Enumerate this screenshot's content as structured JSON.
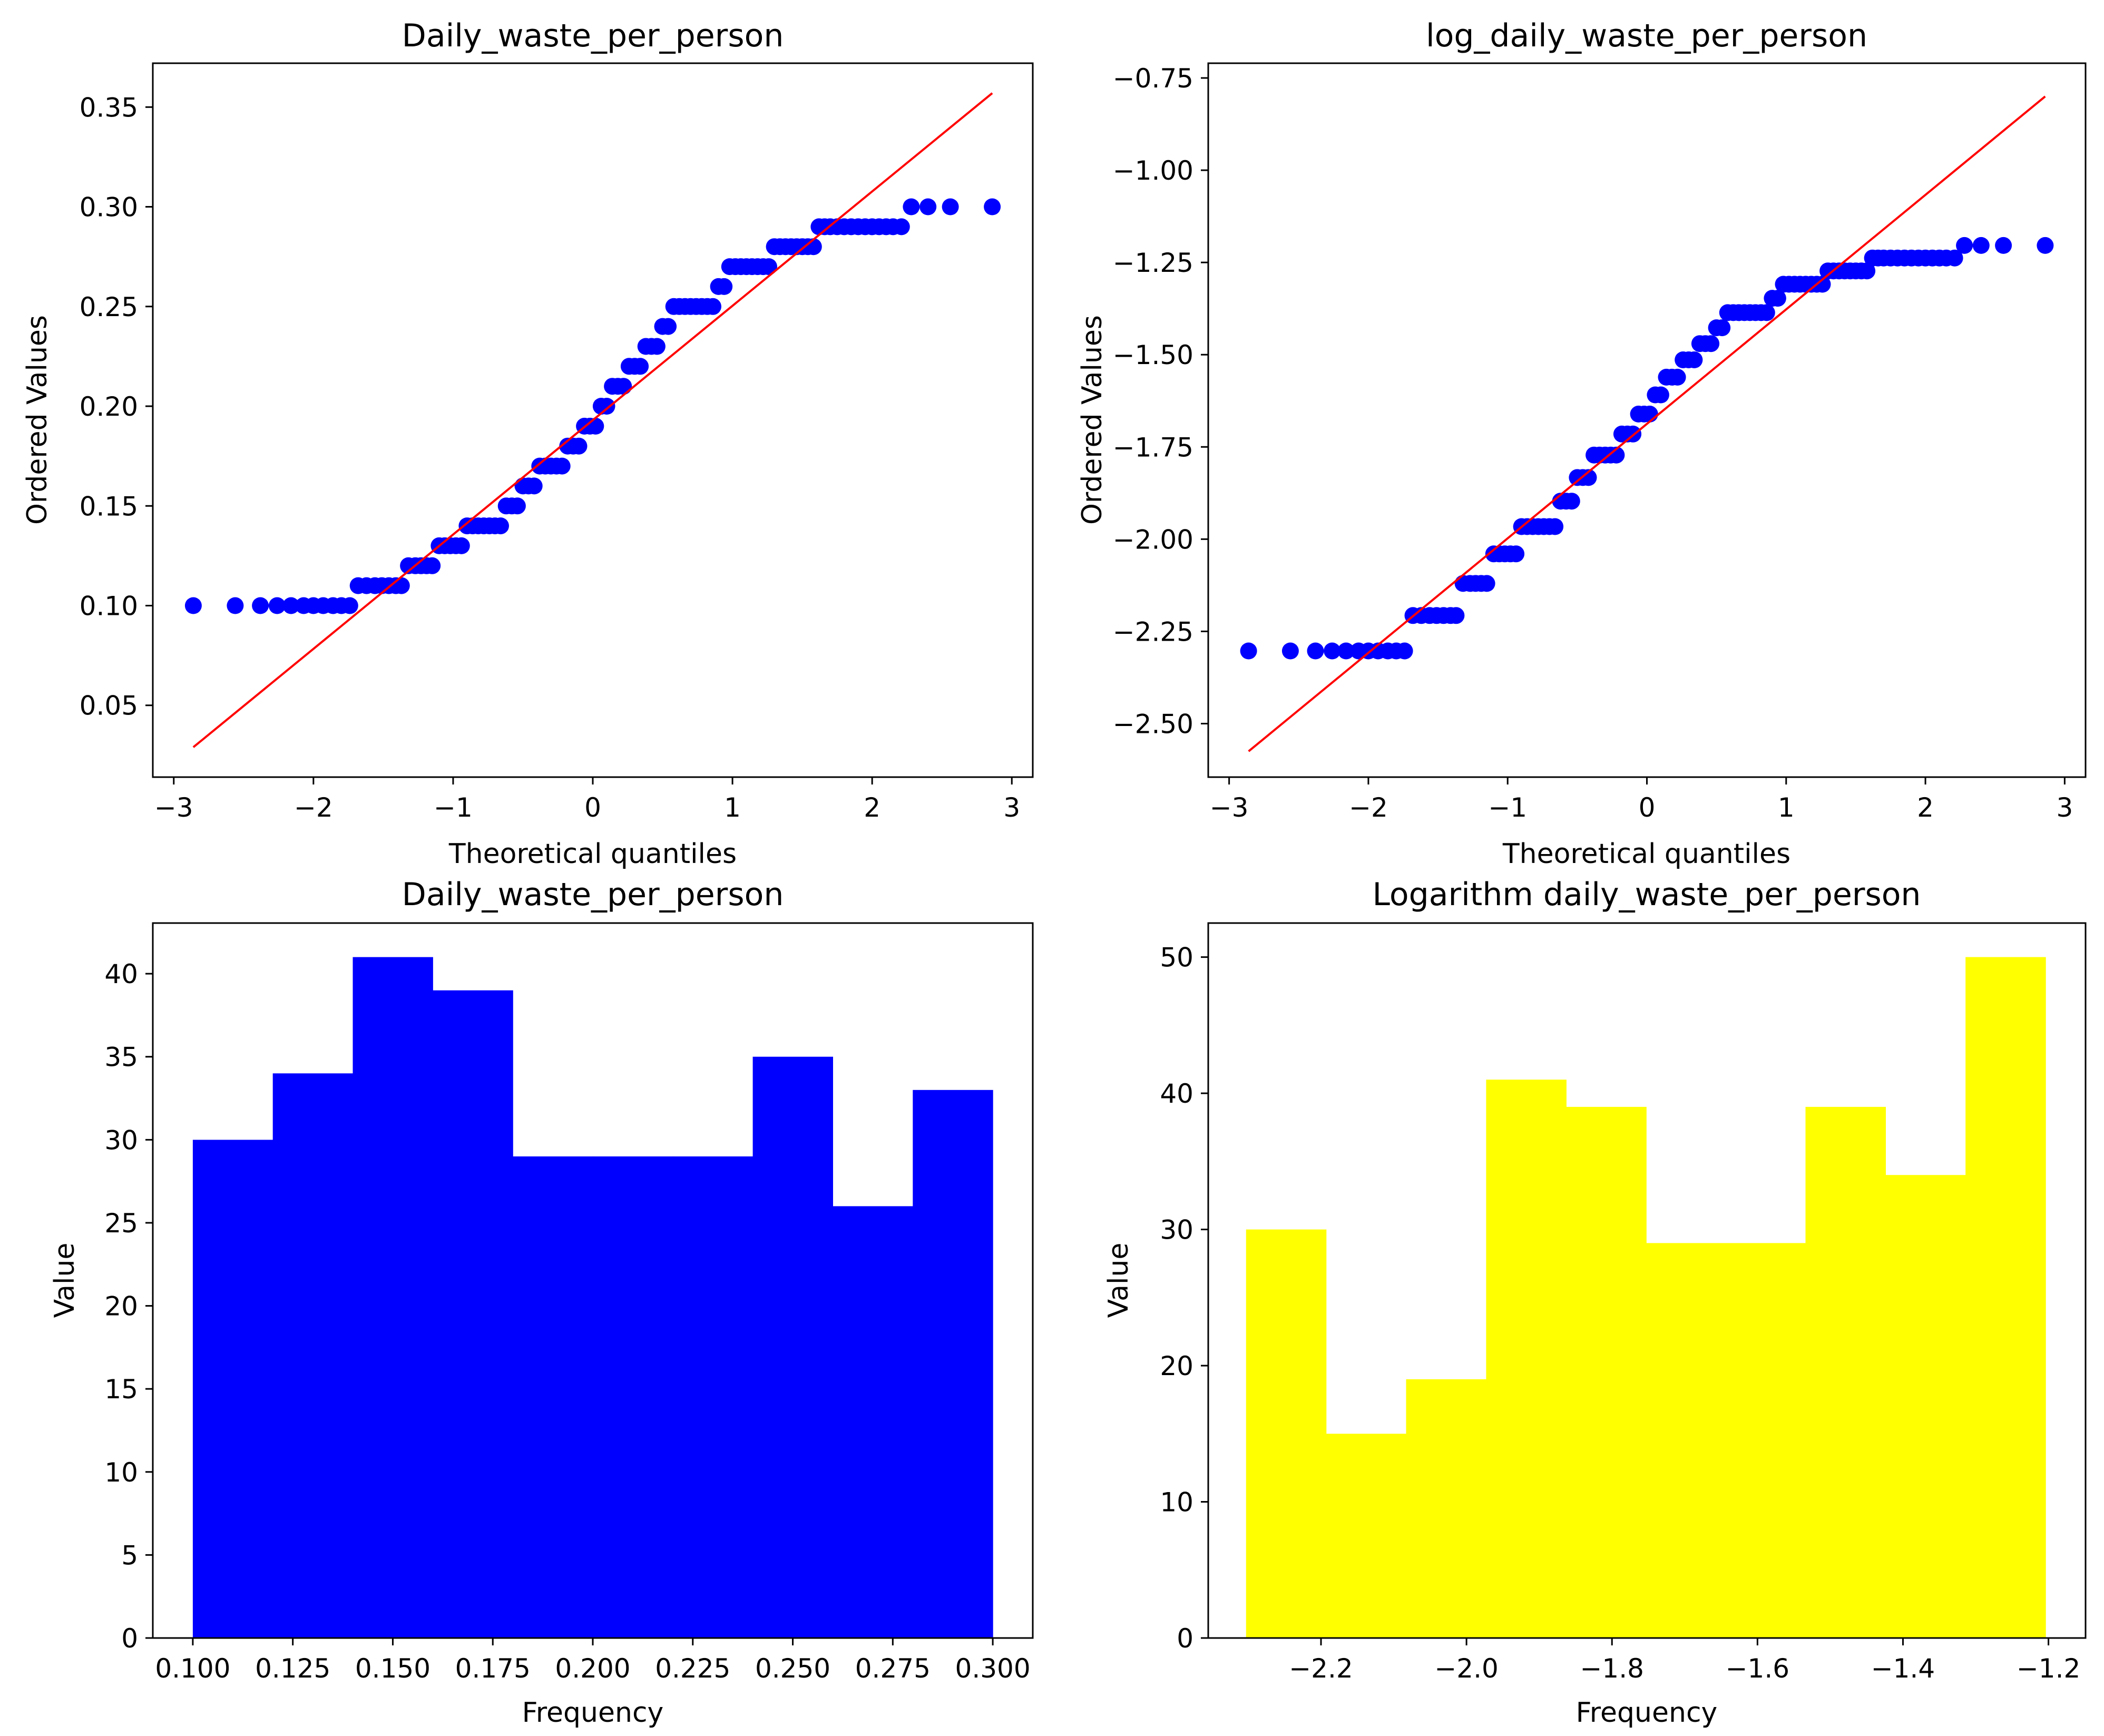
{
  "chart_data": [
    {
      "type": "scatter",
      "subtype": "probability-plot",
      "title": "Daily_waste_per_person",
      "xlabel": "Theoretical quantiles",
      "ylabel": "Ordered Values",
      "xlim": [
        -3.15,
        3.15
      ],
      "ylim": [
        0.014,
        0.372
      ],
      "xticks": [
        -3,
        -2,
        -1,
        0,
        1,
        2,
        3
      ],
      "xtick_labels": [
        "−3",
        "−2",
        "−1",
        "0",
        "1",
        "2",
        "3"
      ],
      "yticks": [
        0.05,
        0.1,
        0.15,
        0.2,
        0.25,
        0.3,
        0.35
      ],
      "ytick_labels": [
        "0.05",
        "0.10",
        "0.15",
        "0.20",
        "0.25",
        "0.30",
        "0.35"
      ],
      "fit_line": {
        "x": [
          -2.86,
          2.86
        ],
        "y": [
          0.029,
          0.357
        ],
        "color": "#ff0000"
      },
      "point_color": "#0000ff",
      "points": [
        [
          -2.86,
          0.1
        ],
        [
          -2.56,
          0.1
        ],
        [
          -2.38,
          0.1
        ],
        [
          -2.26,
          0.1
        ],
        [
          -2.16,
          0.1
        ],
        [
          -2.07,
          0.1
        ],
        [
          -2.0,
          0.1
        ],
        [
          -1.93,
          0.1
        ],
        [
          -1.86,
          0.1
        ],
        [
          -1.8,
          0.1
        ],
        [
          -1.74,
          0.1
        ],
        [
          -1.68,
          0.11
        ],
        [
          -1.62,
          0.11
        ],
        [
          -1.56,
          0.11
        ],
        [
          -1.51,
          0.11
        ],
        [
          -1.46,
          0.11
        ],
        [
          -1.41,
          0.11
        ],
        [
          -1.37,
          0.11
        ],
        [
          -1.32,
          0.12
        ],
        [
          -1.27,
          0.12
        ],
        [
          -1.23,
          0.12
        ],
        [
          -1.19,
          0.12
        ],
        [
          -1.15,
          0.12
        ],
        [
          -1.1,
          0.13
        ],
        [
          -1.06,
          0.13
        ],
        [
          -1.02,
          0.13
        ],
        [
          -0.98,
          0.13
        ],
        [
          -0.94,
          0.13
        ],
        [
          -0.9,
          0.14
        ],
        [
          -0.86,
          0.14
        ],
        [
          -0.82,
          0.14
        ],
        [
          -0.78,
          0.14
        ],
        [
          -0.74,
          0.14
        ],
        [
          -0.7,
          0.14
        ],
        [
          -0.66,
          0.14
        ],
        [
          -0.62,
          0.15
        ],
        [
          -0.58,
          0.15
        ],
        [
          -0.54,
          0.15
        ],
        [
          -0.5,
          0.16
        ],
        [
          -0.46,
          0.16
        ],
        [
          -0.42,
          0.16
        ],
        [
          -0.38,
          0.17
        ],
        [
          -0.34,
          0.17
        ],
        [
          -0.3,
          0.17
        ],
        [
          -0.26,
          0.17
        ],
        [
          -0.22,
          0.17
        ],
        [
          -0.18,
          0.18
        ],
        [
          -0.14,
          0.18
        ],
        [
          -0.1,
          0.18
        ],
        [
          -0.06,
          0.19
        ],
        [
          -0.02,
          0.19
        ],
        [
          0.02,
          0.19
        ],
        [
          0.06,
          0.2
        ],
        [
          0.1,
          0.2
        ],
        [
          0.14,
          0.21
        ],
        [
          0.18,
          0.21
        ],
        [
          0.22,
          0.21
        ],
        [
          0.26,
          0.22
        ],
        [
          0.3,
          0.22
        ],
        [
          0.34,
          0.22
        ],
        [
          0.38,
          0.23
        ],
        [
          0.42,
          0.23
        ],
        [
          0.46,
          0.23
        ],
        [
          0.5,
          0.24
        ],
        [
          0.54,
          0.24
        ],
        [
          0.58,
          0.25
        ],
        [
          0.62,
          0.25
        ],
        [
          0.66,
          0.25
        ],
        [
          0.7,
          0.25
        ],
        [
          0.74,
          0.25
        ],
        [
          0.78,
          0.25
        ],
        [
          0.82,
          0.25
        ],
        [
          0.86,
          0.25
        ],
        [
          0.9,
          0.26
        ],
        [
          0.94,
          0.26
        ],
        [
          0.98,
          0.27
        ],
        [
          1.02,
          0.27
        ],
        [
          1.06,
          0.27
        ],
        [
          1.1,
          0.27
        ],
        [
          1.14,
          0.27
        ],
        [
          1.18,
          0.27
        ],
        [
          1.22,
          0.27
        ],
        [
          1.26,
          0.27
        ],
        [
          1.3,
          0.28
        ],
        [
          1.34,
          0.28
        ],
        [
          1.38,
          0.28
        ],
        [
          1.42,
          0.28
        ],
        [
          1.46,
          0.28
        ],
        [
          1.5,
          0.28
        ],
        [
          1.54,
          0.28
        ],
        [
          1.58,
          0.28
        ],
        [
          1.62,
          0.29
        ],
        [
          1.66,
          0.29
        ],
        [
          1.7,
          0.29
        ],
        [
          1.75,
          0.29
        ],
        [
          1.8,
          0.29
        ],
        [
          1.85,
          0.29
        ],
        [
          1.9,
          0.29
        ],
        [
          1.95,
          0.29
        ],
        [
          2.0,
          0.29
        ],
        [
          2.05,
          0.29
        ],
        [
          2.1,
          0.29
        ],
        [
          2.15,
          0.29
        ],
        [
          2.21,
          0.29
        ],
        [
          2.28,
          0.3
        ],
        [
          2.4,
          0.3
        ],
        [
          2.56,
          0.3
        ],
        [
          2.86,
          0.3
        ]
      ]
    },
    {
      "type": "scatter",
      "subtype": "probability-plot",
      "title": "log_daily_waste_per_person",
      "xlabel": "Theoretical quantiles",
      "ylabel": "Ordered Values",
      "xlim": [
        -3.15,
        3.15
      ],
      "ylim": [
        -2.645,
        -0.71
      ],
      "xticks": [
        -3,
        -2,
        -1,
        0,
        1,
        2,
        3
      ],
      "xtick_labels": [
        "−3",
        "−2",
        "−1",
        "0",
        "1",
        "2",
        "3"
      ],
      "yticks": [
        -2.5,
        -2.25,
        -2.0,
        -1.75,
        -1.5,
        -1.25,
        -1.0,
        -0.75
      ],
      "ytick_labels": [
        "−2.50",
        "−2.25",
        "−2.00",
        "−1.75",
        "−1.50",
        "−1.25",
        "−1.00",
        "−0.75"
      ],
      "fit_line": {
        "x": [
          -2.86,
          2.86
        ],
        "y": [
          -2.575,
          -0.8
        ],
        "color": "#ff0000"
      },
      "point_color": "#0000ff",
      "points": [
        [
          -2.86,
          -2.303
        ],
        [
          -2.56,
          -2.303
        ],
        [
          -2.38,
          -2.303
        ],
        [
          -2.26,
          -2.303
        ],
        [
          -2.16,
          -2.303
        ],
        [
          -2.07,
          -2.303
        ],
        [
          -2.0,
          -2.303
        ],
        [
          -1.93,
          -2.303
        ],
        [
          -1.86,
          -2.303
        ],
        [
          -1.8,
          -2.303
        ],
        [
          -1.74,
          -2.303
        ],
        [
          -1.68,
          -2.207
        ],
        [
          -1.62,
          -2.207
        ],
        [
          -1.56,
          -2.207
        ],
        [
          -1.51,
          -2.207
        ],
        [
          -1.46,
          -2.207
        ],
        [
          -1.41,
          -2.207
        ],
        [
          -1.37,
          -2.207
        ],
        [
          -1.32,
          -2.12
        ],
        [
          -1.27,
          -2.12
        ],
        [
          -1.23,
          -2.12
        ],
        [
          -1.19,
          -2.12
        ],
        [
          -1.15,
          -2.12
        ],
        [
          -1.1,
          -2.04
        ],
        [
          -1.06,
          -2.04
        ],
        [
          -1.02,
          -2.04
        ],
        [
          -0.98,
          -2.04
        ],
        [
          -0.94,
          -2.04
        ],
        [
          -0.9,
          -1.966
        ],
        [
          -0.86,
          -1.966
        ],
        [
          -0.82,
          -1.966
        ],
        [
          -0.78,
          -1.966
        ],
        [
          -0.74,
          -1.966
        ],
        [
          -0.7,
          -1.966
        ],
        [
          -0.66,
          -1.966
        ],
        [
          -0.62,
          -1.897
        ],
        [
          -0.58,
          -1.897
        ],
        [
          -0.54,
          -1.897
        ],
        [
          -0.5,
          -1.833
        ],
        [
          -0.46,
          -1.833
        ],
        [
          -0.42,
          -1.833
        ],
        [
          -0.38,
          -1.772
        ],
        [
          -0.34,
          -1.772
        ],
        [
          -0.3,
          -1.772
        ],
        [
          -0.26,
          -1.772
        ],
        [
          -0.22,
          -1.772
        ],
        [
          -0.18,
          -1.715
        ],
        [
          -0.14,
          -1.715
        ],
        [
          -0.1,
          -1.715
        ],
        [
          -0.06,
          -1.661
        ],
        [
          -0.02,
          -1.661
        ],
        [
          0.02,
          -1.661
        ],
        [
          0.06,
          -1.609
        ],
        [
          0.1,
          -1.609
        ],
        [
          0.14,
          -1.561
        ],
        [
          0.18,
          -1.561
        ],
        [
          0.22,
          -1.561
        ],
        [
          0.26,
          -1.514
        ],
        [
          0.3,
          -1.514
        ],
        [
          0.34,
          -1.514
        ],
        [
          0.38,
          -1.47
        ],
        [
          0.42,
          -1.47
        ],
        [
          0.46,
          -1.47
        ],
        [
          0.5,
          -1.427
        ],
        [
          0.54,
          -1.427
        ],
        [
          0.58,
          -1.386
        ],
        [
          0.62,
          -1.386
        ],
        [
          0.66,
          -1.386
        ],
        [
          0.7,
          -1.386
        ],
        [
          0.74,
          -1.386
        ],
        [
          0.78,
          -1.386
        ],
        [
          0.82,
          -1.386
        ],
        [
          0.86,
          -1.386
        ],
        [
          0.9,
          -1.347
        ],
        [
          0.94,
          -1.347
        ],
        [
          0.98,
          -1.309
        ],
        [
          1.02,
          -1.309
        ],
        [
          1.06,
          -1.309
        ],
        [
          1.1,
          -1.309
        ],
        [
          1.14,
          -1.309
        ],
        [
          1.18,
          -1.309
        ],
        [
          1.22,
          -1.309
        ],
        [
          1.26,
          -1.309
        ],
        [
          1.3,
          -1.273
        ],
        [
          1.34,
          -1.273
        ],
        [
          1.38,
          -1.273
        ],
        [
          1.42,
          -1.273
        ],
        [
          1.46,
          -1.273
        ],
        [
          1.5,
          -1.273
        ],
        [
          1.54,
          -1.273
        ],
        [
          1.58,
          -1.273
        ],
        [
          1.62,
          -1.238
        ],
        [
          1.66,
          -1.238
        ],
        [
          1.7,
          -1.238
        ],
        [
          1.75,
          -1.238
        ],
        [
          1.8,
          -1.238
        ],
        [
          1.85,
          -1.238
        ],
        [
          1.9,
          -1.238
        ],
        [
          1.95,
          -1.238
        ],
        [
          2.0,
          -1.238
        ],
        [
          2.05,
          -1.238
        ],
        [
          2.1,
          -1.238
        ],
        [
          2.15,
          -1.238
        ],
        [
          2.21,
          -1.238
        ],
        [
          2.28,
          -1.204
        ],
        [
          2.4,
          -1.204
        ],
        [
          2.56,
          -1.204
        ],
        [
          2.86,
          -1.204
        ]
      ]
    },
    {
      "type": "bar",
      "subtype": "histogram",
      "title": "Daily_waste_per_person",
      "xlabel": "Frequency",
      "ylabel": "Value",
      "xlim": [
        0.09,
        0.31
      ],
      "ylim": [
        0,
        43.05
      ],
      "bin_edges": [
        0.1,
        0.12,
        0.14,
        0.16,
        0.18,
        0.2,
        0.22,
        0.24,
        0.26,
        0.28,
        0.3
      ],
      "values": [
        30,
        34,
        41,
        39,
        29,
        29,
        29,
        35,
        26,
        33
      ],
      "color": "#0000ff",
      "xticks": [
        0.1,
        0.125,
        0.15,
        0.175,
        0.2,
        0.225,
        0.25,
        0.275,
        0.3
      ],
      "xtick_labels": [
        "0.100",
        "0.125",
        "0.150",
        "0.175",
        "0.200",
        "0.225",
        "0.250",
        "0.275",
        "0.300"
      ],
      "yticks": [
        0,
        5,
        10,
        15,
        20,
        25,
        30,
        35,
        40
      ],
      "ytick_labels": [
        "0",
        "5",
        "10",
        "15",
        "20",
        "25",
        "30",
        "35",
        "40"
      ]
    },
    {
      "type": "bar",
      "subtype": "histogram",
      "title": "Logarithm daily_waste_per_person",
      "xlabel": "Frequency",
      "ylabel": "Value",
      "xlim": [
        -2.355,
        -1.149
      ],
      "ylim": [
        0,
        52.5
      ],
      "bin_edges": [
        -2.303,
        -2.193,
        -2.083,
        -1.973,
        -1.863,
        -1.753,
        -1.644,
        -1.534,
        -1.424,
        -1.314,
        -1.204
      ],
      "values": [
        30,
        15,
        19,
        41,
        39,
        29,
        29,
        39,
        34,
        50
      ],
      "color": "#ffff00",
      "xticks": [
        -2.2,
        -2.0,
        -1.8,
        -1.6,
        -1.4,
        -1.2
      ],
      "xtick_labels": [
        "−2.2",
        "−2.0",
        "−1.8",
        "−1.6",
        "−1.4",
        "−1.2"
      ],
      "yticks": [
        0,
        10,
        20,
        30,
        40,
        50
      ],
      "ytick_labels": [
        "0",
        "10",
        "20",
        "30",
        "40",
        "50"
      ]
    }
  ]
}
